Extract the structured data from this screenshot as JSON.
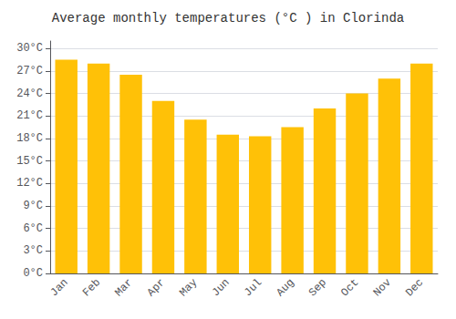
{
  "chart_data": {
    "type": "bar",
    "title": "Average monthly temperatures (°C ) in Clorinda",
    "categories": [
      "Jan",
      "Feb",
      "Mar",
      "Apr",
      "May",
      "Jun",
      "Jul",
      "Aug",
      "Sep",
      "Oct",
      "Nov",
      "Dec"
    ],
    "values": [
      28.5,
      28.0,
      26.5,
      23.0,
      20.5,
      18.5,
      18.3,
      19.5,
      22.0,
      24.0,
      26.0,
      28.0
    ],
    "color": "#FFC107",
    "ylim": [
      0,
      31
    ],
    "yticks": [
      {
        "value": 0,
        "label": "0°C"
      },
      {
        "value": 3,
        "label": "3°C"
      },
      {
        "value": 6,
        "label": "6°C"
      },
      {
        "value": 9,
        "label": "9°C"
      },
      {
        "value": 12,
        "label": "12°C"
      },
      {
        "value": 15,
        "label": "15°C"
      },
      {
        "value": 18,
        "label": "18°C"
      },
      {
        "value": 21,
        "label": "21°C"
      },
      {
        "value": 24,
        "label": "24°C"
      },
      {
        "value": 27,
        "label": "27°C"
      },
      {
        "value": 30,
        "label": "30°C"
      }
    ],
    "grid": true
  }
}
